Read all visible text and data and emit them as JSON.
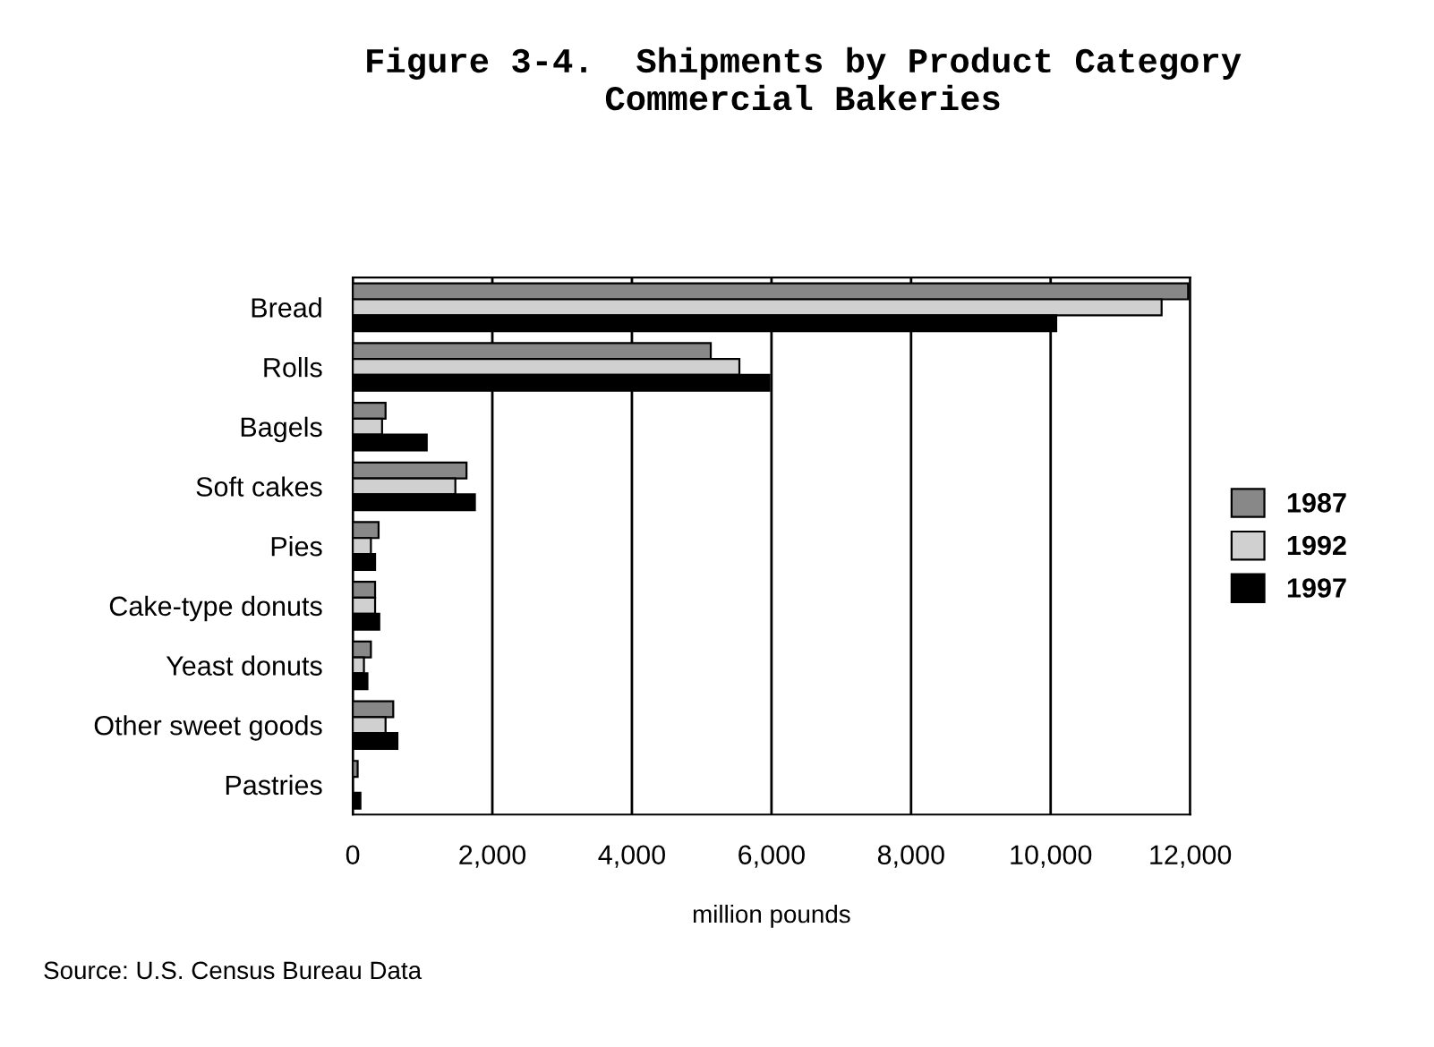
{
  "chart_data": {
    "type": "bar",
    "orientation": "horizontal",
    "title": "Figure 3-4.  Shipments by Product Category\nCommercial Bakeries",
    "xlabel": "million pounds",
    "categories": [
      "Bread",
      "Rolls",
      "Bagels",
      "Soft cakes",
      "Pies",
      "Cake-type donuts",
      "Yeast donuts",
      "Other sweet goods",
      "Pastries"
    ],
    "series": [
      {
        "name": "1987",
        "color": "#888888",
        "values": [
          11970,
          5130,
          470,
          1630,
          370,
          320,
          260,
          580,
          70
        ]
      },
      {
        "name": "1992",
        "color": "#d0d0d0",
        "values": [
          11590,
          5540,
          420,
          1470,
          260,
          320,
          160,
          470,
          null
        ]
      },
      {
        "name": "1997",
        "color": "#000000",
        "values": [
          10080,
          5970,
          1060,
          1750,
          320,
          380,
          210,
          640,
          110
        ]
      }
    ],
    "xlim": [
      0,
      12000
    ],
    "xticks": [
      {
        "value": 0,
        "label": "0"
      },
      {
        "value": 2000,
        "label": "2,000"
      },
      {
        "value": 4000,
        "label": "4,000"
      },
      {
        "value": 6000,
        "label": "6,000"
      },
      {
        "value": 8000,
        "label": "8,000"
      },
      {
        "value": 10000,
        "label": "10,000"
      },
      {
        "value": 12000,
        "label": "12,000"
      }
    ],
    "grid": "x",
    "legend": "right",
    "annotations": [
      "Source: U.S. Census Bureau Data"
    ]
  }
}
